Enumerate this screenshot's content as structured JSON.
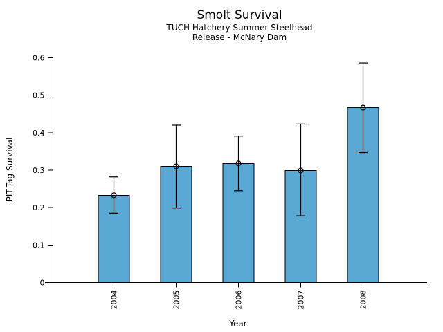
{
  "chart_data": {
    "type": "bar",
    "title": "Smolt Survival",
    "subtitle1": "TUCH Hatchery Summer Steelhead",
    "subtitle2": "Release - McNary Dam",
    "xlabel": "Year",
    "ylabel": "PIT-Tag Survival",
    "categories": [
      "2004",
      "2005",
      "2006",
      "2007",
      "2008"
    ],
    "values": [
      0.233,
      0.31,
      0.318,
      0.299,
      0.467
    ],
    "error_low": [
      0.185,
      0.199,
      0.245,
      0.178,
      0.347
    ],
    "error_high": [
      0.282,
      0.42,
      0.391,
      0.423,
      0.586
    ],
    "ylim": [
      0,
      0.6
    ],
    "yticks": [
      0,
      0.1,
      0.2,
      0.3,
      0.4,
      0.5,
      0.6
    ],
    "ytick_labels": [
      "0",
      "0.1",
      "0.2",
      "0.3",
      "0.4",
      "0.5",
      "0.6"
    ],
    "xtick_label_rotation_deg": -90,
    "grid": false,
    "legend": null,
    "background_color": "#ffffff",
    "bar_color": "#5AA9D4",
    "bar_edge_color": "#000000",
    "error_bar_color": "#000000",
    "marker": "open-circle",
    "marker_color": "#000000"
  }
}
